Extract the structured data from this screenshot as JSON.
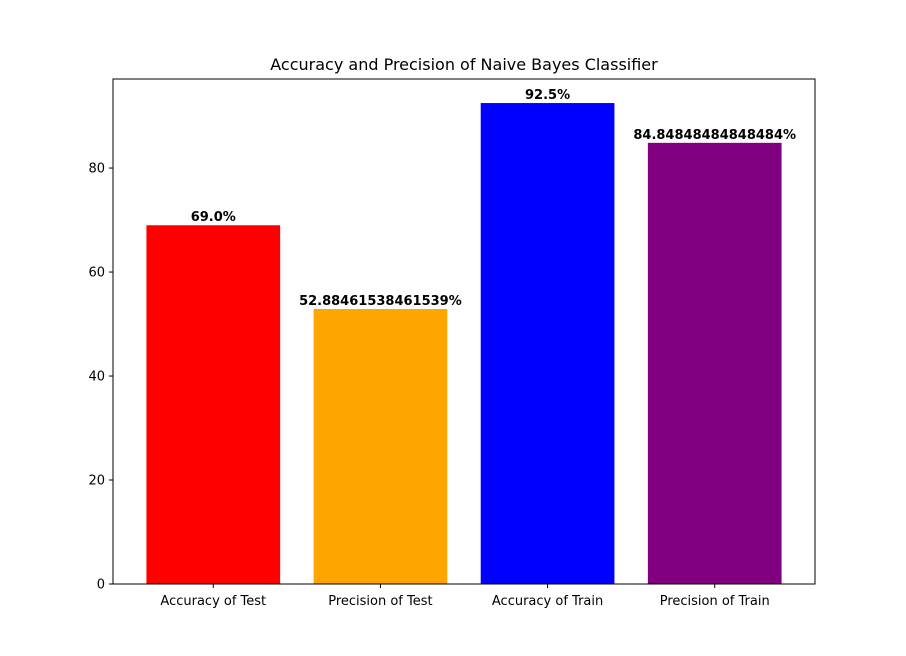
{
  "chart_data": {
    "type": "bar",
    "title": "Accuracy and Precision of Naive Bayes Classifier",
    "xlabel": "",
    "ylabel": "",
    "categories": [
      "Accuracy of Test",
      "Precision of Test",
      "Accuracy of Train",
      "Precision of Train"
    ],
    "values": [
      69.0,
      52.88461538461539,
      92.5,
      84.84848484848484
    ],
    "value_labels": [
      "69.0%",
      "52.88461538461539%",
      "92.5%",
      "84.84848484848484%"
    ],
    "colors": [
      "#ff0000",
      "#ffa500",
      "#0000ff",
      "#800080"
    ],
    "ylim": [
      0,
      97.125
    ],
    "yticks": [
      0,
      20,
      40,
      60,
      80
    ],
    "grid": false,
    "legend": "none"
  }
}
